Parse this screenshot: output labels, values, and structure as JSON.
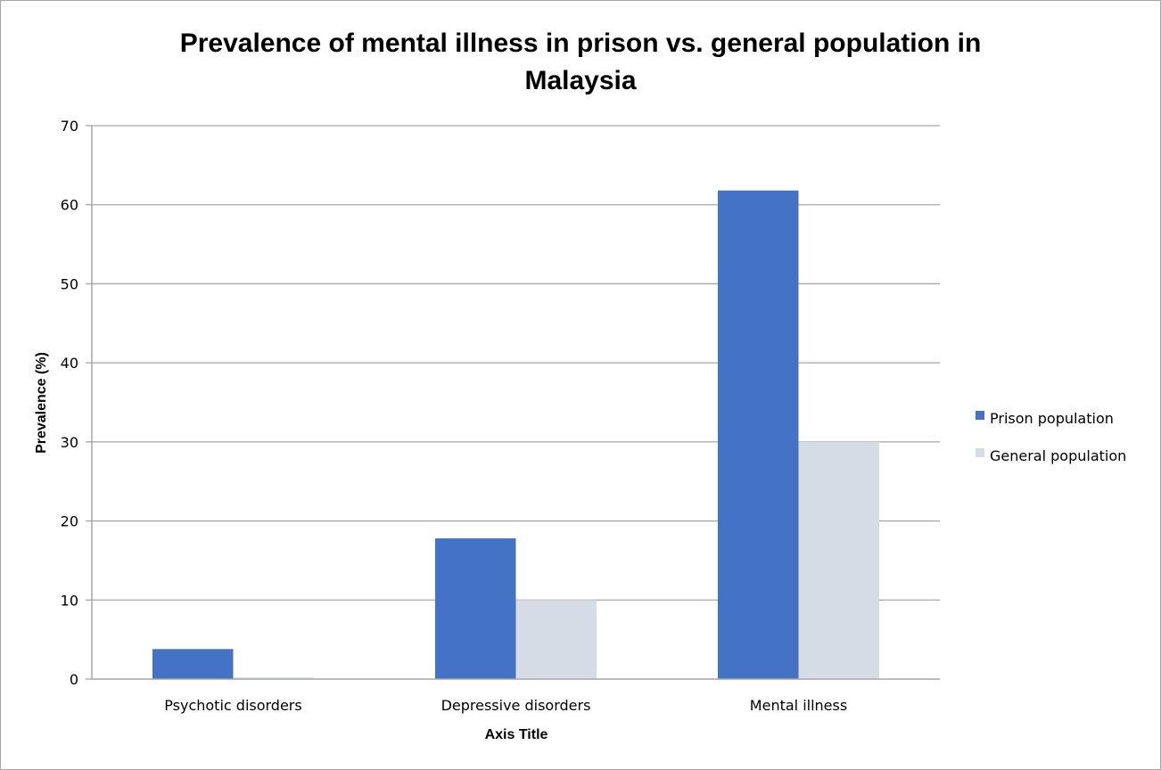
{
  "chart_data": {
    "type": "bar",
    "title": "Prevalence of mental illness in prison vs. general population in Malaysia",
    "title_lines": [
      "Prevalence of mental illness in prison vs. general population in",
      "Malaysia"
    ],
    "categories": [
      "Psychotic disorders",
      "Depressive disorders",
      "Mental illness"
    ],
    "series": [
      {
        "name": "Prison population",
        "color": "#4472c4",
        "values": [
          3.8,
          17.8,
          61.8
        ]
      },
      {
        "name": "General population",
        "color": "#d5dce6",
        "values": [
          0.2,
          10.0,
          30.0
        ]
      }
    ],
    "xlabel": "Axis Title",
    "ylabel": "Prevalence (%)",
    "ylim": [
      0,
      70
    ],
    "yticks": [
      0,
      10,
      20,
      30,
      40,
      50,
      60,
      70
    ],
    "grid": true,
    "legend_position": "right"
  }
}
